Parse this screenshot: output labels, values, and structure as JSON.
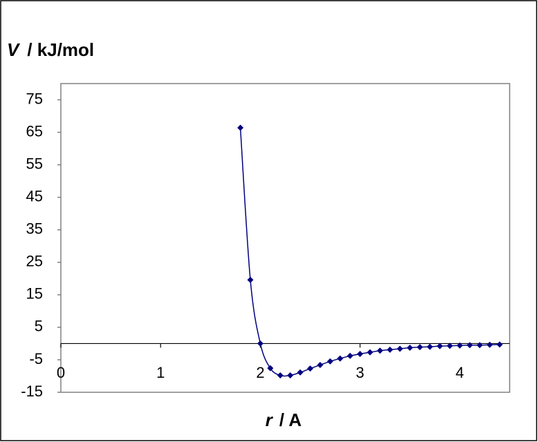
{
  "chart_data": {
    "type": "line",
    "ylabel_symbol": "V",
    "ylabel_unit": "/ kJ/mol",
    "xlabel_symbol": "r",
    "xlabel_unit": "/ A",
    "x": [
      1.8,
      1.9,
      2.0,
      2.1,
      2.2,
      2.3,
      2.4,
      2.5,
      2.6,
      2.7,
      2.8,
      2.9,
      3.0,
      3.1,
      3.2,
      3.3,
      3.4,
      3.5,
      3.6,
      3.7,
      3.8,
      3.9,
      4.0,
      4.1,
      4.2,
      4.3,
      4.4
    ],
    "series": [
      {
        "color": "#000080",
        "values": [
          66.4,
          19.6,
          0,
          -7.6,
          -9.8,
          -9.8,
          -8.9,
          -7.7,
          -6.6,
          -5.5,
          -4.6,
          -3.8,
          -3.2,
          -2.7,
          -2.2,
          -1.9,
          -1.6,
          -1.3,
          -1.1,
          -1.0,
          -0.8,
          -0.7,
          -0.6,
          -0.5,
          -0.5,
          -0.4,
          -0.3
        ]
      }
    ],
    "xlim": [
      0,
      4.5
    ],
    "xticks": [
      0,
      1,
      2,
      3,
      4
    ],
    "ylim": [
      -15,
      80
    ],
    "yticks": [
      -15,
      -5,
      5,
      15,
      25,
      35,
      45,
      55,
      65,
      75
    ],
    "grid": false,
    "smooth": true
  }
}
